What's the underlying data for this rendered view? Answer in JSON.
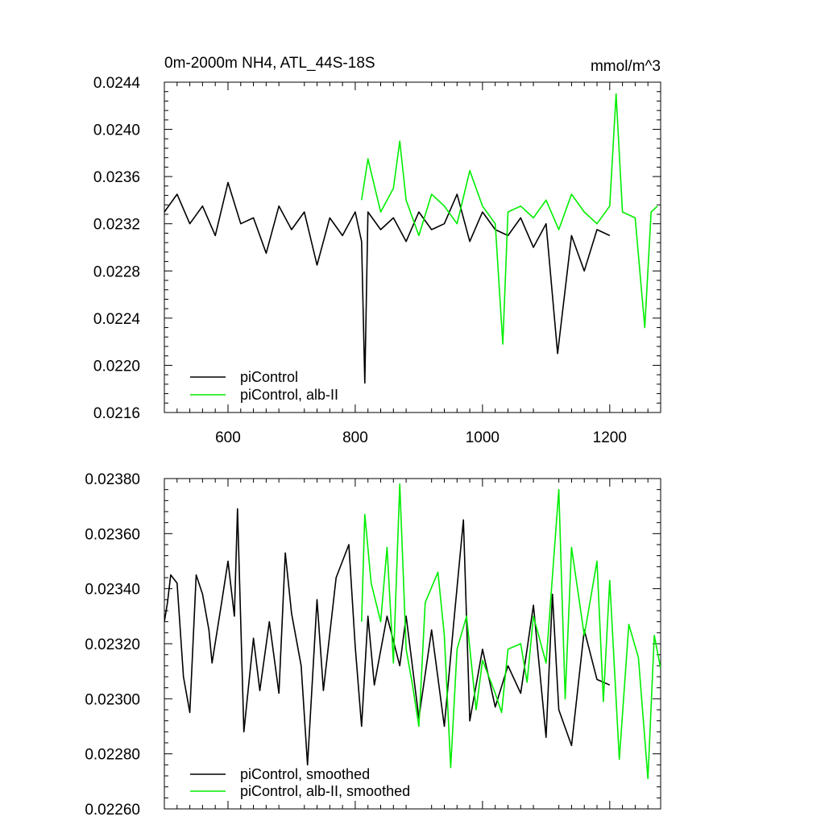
{
  "chart_data": [
    {
      "type": "line",
      "title": "0m-2000m NH4, ATL_44S-18S",
      "units": "mmol/m^3",
      "xlim": [
        500,
        1280
      ],
      "ylim": [
        0.0216,
        0.0244
      ],
      "x_ticks": [
        600,
        800,
        1000,
        1200
      ],
      "x_tick_labels": [
        "600",
        "800",
        "1000",
        "1200"
      ],
      "y_ticks": [
        0.0216,
        0.022,
        0.0224,
        0.0228,
        0.0232,
        0.0236,
        0.024,
        0.0244
      ],
      "y_tick_labels": [
        "0.0216",
        "0.0220",
        "0.0224",
        "0.0228",
        "0.0232",
        "0.0236",
        "0.0240",
        "0.0244"
      ],
      "legend_position": "bottom-left",
      "series": [
        {
          "name": "piControl",
          "color": "#000000",
          "x": [
            500,
            520,
            540,
            560,
            580,
            600,
            620,
            640,
            660,
            680,
            700,
            720,
            740,
            760,
            780,
            800,
            810,
            815,
            820,
            840,
            860,
            880,
            900,
            920,
            940,
            960,
            980,
            1000,
            1020,
            1040,
            1060,
            1080,
            1100,
            1118,
            1140,
            1160,
            1180,
            1200
          ],
          "y": [
            0.0233,
            0.02345,
            0.0232,
            0.02335,
            0.0231,
            0.02355,
            0.0232,
            0.02325,
            0.02295,
            0.02335,
            0.02315,
            0.0233,
            0.02285,
            0.02325,
            0.0231,
            0.0233,
            0.02305,
            0.02185,
            0.0233,
            0.02315,
            0.02325,
            0.02305,
            0.0233,
            0.02315,
            0.0232,
            0.02345,
            0.02305,
            0.0233,
            0.02315,
            0.0231,
            0.02325,
            0.023,
            0.0232,
            0.0221,
            0.0231,
            0.0228,
            0.02315,
            0.0231
          ]
        },
        {
          "name": "piControl, alb-II",
          "color": "#00ee00",
          "x": [
            810,
            820,
            840,
            860,
            870,
            880,
            900,
            920,
            940,
            960,
            980,
            1000,
            1020,
            1032,
            1040,
            1060,
            1080,
            1100,
            1120,
            1140,
            1160,
            1180,
            1200,
            1210,
            1220,
            1240,
            1255,
            1265,
            1275
          ],
          "y": [
            0.0234,
            0.02375,
            0.0233,
            0.0235,
            0.0239,
            0.0234,
            0.0231,
            0.02345,
            0.02335,
            0.0232,
            0.02365,
            0.02335,
            0.0232,
            0.02218,
            0.0233,
            0.02335,
            0.02325,
            0.0234,
            0.02315,
            0.02345,
            0.0233,
            0.0232,
            0.02335,
            0.0243,
            0.0233,
            0.02325,
            0.02232,
            0.0233,
            0.02335
          ]
        }
      ]
    },
    {
      "type": "line",
      "xlim": [
        500,
        1280
      ],
      "ylim": [
        0.0226,
        0.0238
      ],
      "x_ticks": [
        600,
        800,
        1000,
        1200
      ],
      "y_ticks": [
        0.0226,
        0.0228,
        0.023,
        0.0232,
        0.0234,
        0.0236,
        0.0238
      ],
      "y_tick_labels": [
        "0.02260",
        "0.02280",
        "0.02300",
        "0.02320",
        "0.02340",
        "0.02360",
        "0.02380"
      ],
      "legend_position": "bottom-left",
      "series": [
        {
          "name": "piControl, smoothed",
          "color": "#000000",
          "x": [
            500,
            505,
            510,
            520,
            530,
            540,
            550,
            560,
            570,
            575,
            590,
            600,
            610,
            615,
            625,
            640,
            650,
            665,
            680,
            690,
            700,
            715,
            725,
            740,
            750,
            770,
            790,
            800,
            810,
            820,
            830,
            850,
            870,
            880,
            900,
            920,
            940,
            955,
            970,
            980,
            1000,
            1020,
            1040,
            1060,
            1080,
            1100,
            1110,
            1120,
            1140,
            1160,
            1180,
            1200
          ],
          "y": [
            0.02328,
            0.02335,
            0.02345,
            0.02342,
            0.02308,
            0.02295,
            0.02345,
            0.02338,
            0.02325,
            0.02313,
            0.02335,
            0.0235,
            0.0233,
            0.02369,
            0.02288,
            0.02322,
            0.02303,
            0.02328,
            0.02302,
            0.02353,
            0.02331,
            0.02312,
            0.02276,
            0.02336,
            0.02303,
            0.02344,
            0.02356,
            0.02319,
            0.0229,
            0.0233,
            0.02305,
            0.0233,
            0.02312,
            0.0233,
            0.02293,
            0.02325,
            0.0229,
            0.02328,
            0.02365,
            0.02292,
            0.02318,
            0.02297,
            0.02312,
            0.02302,
            0.02334,
            0.02286,
            0.02338,
            0.02296,
            0.02283,
            0.02325,
            0.02307,
            0.02305
          ]
        },
        {
          "name": "piControl, alb-II, smoothed",
          "color": "#00ee00",
          "x": [
            810,
            815,
            825,
            840,
            850,
            860,
            870,
            880,
            890,
            900,
            910,
            930,
            940,
            950,
            960,
            975,
            990,
            1000,
            1020,
            1030,
            1040,
            1060,
            1070,
            1080,
            1100,
            1120,
            1130,
            1140,
            1160,
            1180,
            1190,
            1200,
            1215,
            1230,
            1245,
            1260,
            1270,
            1280
          ],
          "y": [
            0.02328,
            0.02367,
            0.02342,
            0.02328,
            0.02355,
            0.02313,
            0.02378,
            0.02318,
            0.02305,
            0.0229,
            0.02335,
            0.02346,
            0.02323,
            0.02275,
            0.02318,
            0.0233,
            0.02296,
            0.02314,
            0.02302,
            0.02295,
            0.02318,
            0.0232,
            0.02306,
            0.0233,
            0.02313,
            0.02376,
            0.023,
            0.02355,
            0.02323,
            0.0235,
            0.02299,
            0.02343,
            0.02278,
            0.02327,
            0.02315,
            0.02271,
            0.02323,
            0.02311
          ]
        }
      ]
    }
  ]
}
